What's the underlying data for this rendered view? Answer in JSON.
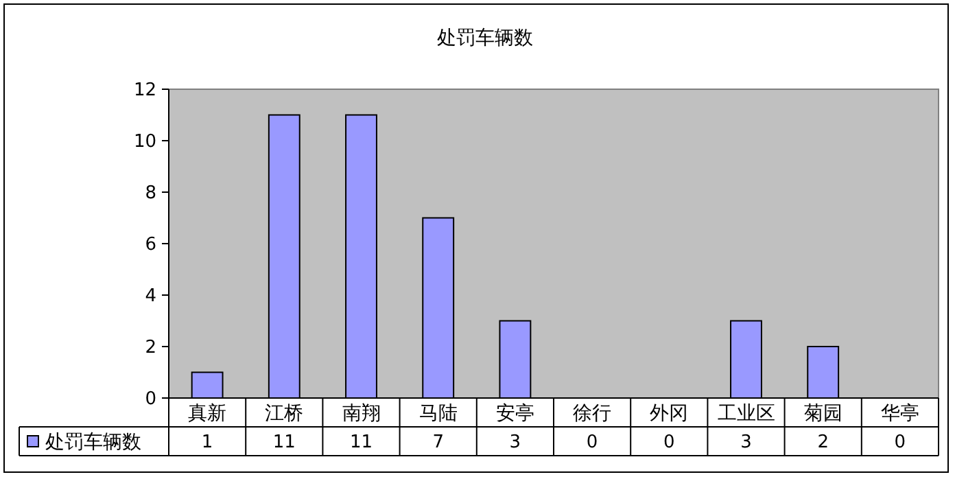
{
  "chart_data": {
    "type": "bar",
    "title": "处罚车辆数",
    "categories": [
      "真新",
      "江桥",
      "南翔",
      "马陆",
      "安亭",
      "徐行",
      "外冈",
      "工业区",
      "菊园",
      "华亭"
    ],
    "series": [
      {
        "name": "处罚车辆数",
        "color": "#9999ff",
        "values": [
          1,
          11,
          11,
          7,
          3,
          0,
          0,
          3,
          2,
          0
        ]
      }
    ],
    "ylim": [
      0,
      12
    ],
    "yticks": [
      0,
      2,
      4,
      6,
      8,
      10,
      12
    ],
    "data_labels": true,
    "legend": "bottom left"
  }
}
